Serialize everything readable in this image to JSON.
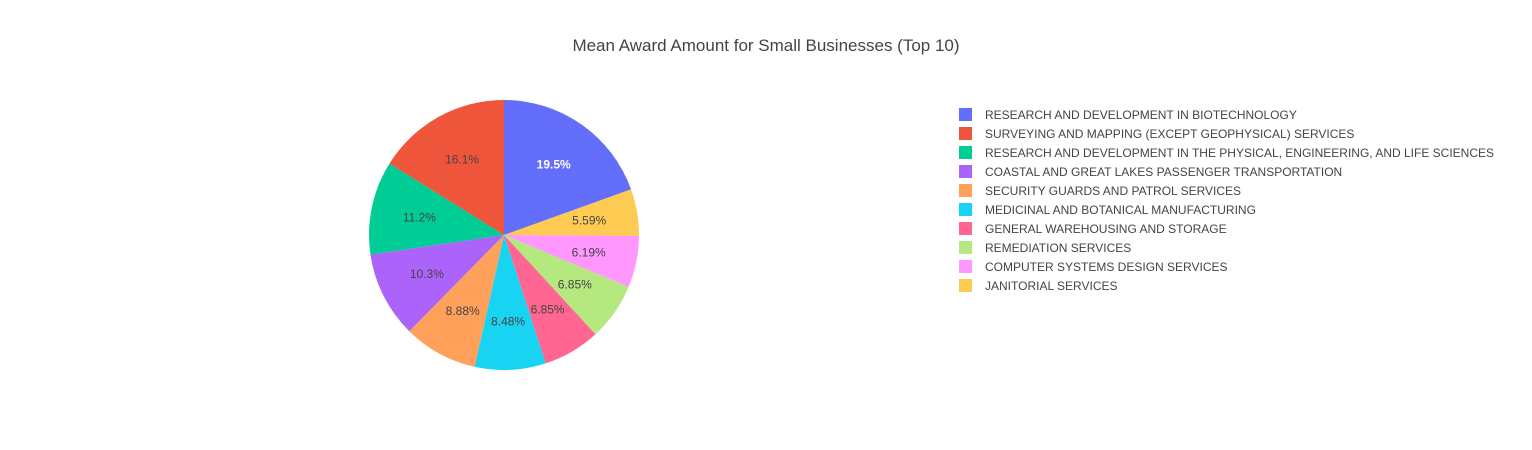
{
  "chart_data": {
    "type": "pie",
    "title": "Mean Award Amount for Small Businesses (Top 10)",
    "direction": "clockwise",
    "start": "12 o'clock",
    "slices": [
      {
        "label": "RESEARCH AND DEVELOPMENT IN BIOTECHNOLOGY",
        "percent": 19.5,
        "text": "19.5%",
        "color": "#636efa",
        "label_color": "#ffffff",
        "label_bold": true
      },
      {
        "label": "JANITORIAL SERVICES",
        "percent": 5.59,
        "text": "5.59%",
        "color": "#fecb52",
        "label_color": "#444444",
        "label_bold": false
      },
      {
        "label": "COMPUTER SYSTEMS DESIGN SERVICES",
        "percent": 6.19,
        "text": "6.19%",
        "color": "#ff97ff",
        "label_color": "#444444",
        "label_bold": false
      },
      {
        "label": "REMEDIATION SERVICES",
        "percent": 6.85,
        "text": "6.85%",
        "color": "#b6e880",
        "label_color": "#444444",
        "label_bold": false
      },
      {
        "label": "GENERAL WAREHOUSING AND STORAGE",
        "percent": 6.85,
        "text": "6.85%",
        "color": "#ff6692",
        "label_color": "#444444",
        "label_bold": false
      },
      {
        "label": "MEDICINAL AND BOTANICAL MANUFACTURING",
        "percent": 8.48,
        "text": "8.48%",
        "color": "#19d3f3",
        "label_color": "#444444",
        "label_bold": false
      },
      {
        "label": "SECURITY GUARDS AND PATROL SERVICES",
        "percent": 8.88,
        "text": "8.88%",
        "color": "#ffa15a",
        "label_color": "#444444",
        "label_bold": false
      },
      {
        "label": "COASTAL AND GREAT LAKES PASSENGER TRANSPORTATION",
        "percent": 10.3,
        "text": "10.3%",
        "color": "#ab63fa",
        "label_color": "#444444",
        "label_bold": false
      },
      {
        "label": "RESEARCH AND DEVELOPMENT IN THE PHYSICAL, ENGINEERING, AND LIFE SCIENCES",
        "percent": 11.2,
        "text": "11.2%",
        "color": "#00cc96",
        "label_color": "#444444",
        "label_bold": false
      },
      {
        "label": "SURVEYING AND MAPPING (EXCEPT GEOPHYSICAL) SERVICES",
        "percent": 16.1,
        "text": "16.1%",
        "color": "#ef553b",
        "label_color": "#444444",
        "label_bold": false
      }
    ],
    "legend": {
      "placement": "right",
      "items": [
        {
          "label": "RESEARCH AND DEVELOPMENT IN BIOTECHNOLOGY",
          "color": "#636efa"
        },
        {
          "label": "SURVEYING AND MAPPING (EXCEPT GEOPHYSICAL) SERVICES",
          "color": "#ef553b"
        },
        {
          "label": "RESEARCH AND DEVELOPMENT IN THE PHYSICAL, ENGINEERING, AND LIFE SCIENCES",
          "color": "#00cc96"
        },
        {
          "label": "COASTAL AND GREAT LAKES PASSENGER TRANSPORTATION",
          "color": "#ab63fa"
        },
        {
          "label": "SECURITY GUARDS AND PATROL SERVICES",
          "color": "#ffa15a"
        },
        {
          "label": "MEDICINAL AND BOTANICAL MANUFACTURING",
          "color": "#19d3f3"
        },
        {
          "label": "GENERAL WAREHOUSING AND STORAGE",
          "color": "#ff6692"
        },
        {
          "label": "REMEDIATION SERVICES",
          "color": "#b6e880"
        },
        {
          "label": "COMPUTER SYSTEMS DESIGN SERVICES",
          "color": "#ff97ff"
        },
        {
          "label": "JANITORIAL SERVICES",
          "color": "#fecb52"
        }
      ]
    }
  }
}
